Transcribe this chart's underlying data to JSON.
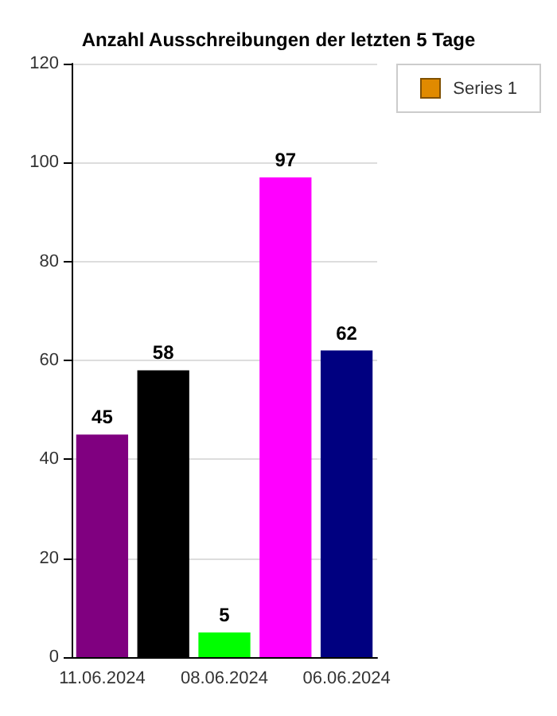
{
  "chart_data": {
    "type": "bar",
    "title": "Anzahl Ausschreibungen der letzten 5 Tage",
    "categories": [
      "11.06.2024",
      null,
      "08.06.2024",
      null,
      "06.06.2024"
    ],
    "series": [
      {
        "name": "Series 1",
        "color": "#e08a00",
        "colors": [
          "#800080",
          "#000000",
          "#00ff00",
          "#ff00ff",
          "#000080"
        ],
        "values": [
          45,
          58,
          5,
          97,
          62
        ]
      }
    ],
    "ylim": [
      0,
      120
    ],
    "yticks": [
      0,
      20,
      40,
      60,
      80,
      100,
      120
    ],
    "grid": "y",
    "legend": "top right",
    "data_labels": true
  }
}
